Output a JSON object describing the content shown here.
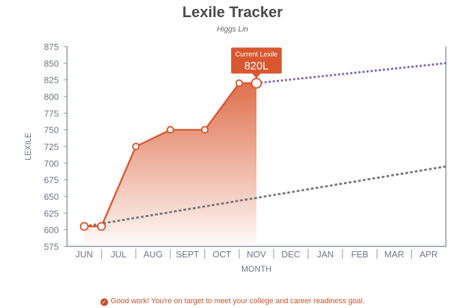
{
  "chart_data": {
    "type": "line",
    "title": "Lexile Tracker",
    "subtitle": "Higgs Lin",
    "xlabel": "MONTH",
    "ylabel": "LEXILE",
    "categories": [
      "JUN",
      "JUL",
      "AUG",
      "SEPT",
      "OCT",
      "NOV",
      "DEC",
      "JAN",
      "FEB",
      "MAR",
      "APR"
    ],
    "ylim": [
      575,
      875
    ],
    "yticks": [
      575,
      600,
      625,
      650,
      675,
      700,
      725,
      750,
      775,
      800,
      825,
      850,
      875
    ],
    "series": [
      {
        "points": [
          {
            "x": 0,
            "y": 605
          },
          {
            "x": 0.5,
            "y": 605
          },
          {
            "x": 1.5,
            "y": 725
          },
          {
            "x": 2.5,
            "y": 750
          },
          {
            "x": 3.5,
            "y": 750
          },
          {
            "x": 4.5,
            "y": 820
          },
          {
            "x": 5,
            "y": 820
          }
        ]
      },
      {
        "points": [
          {
            "x": 5,
            "y": 820
          },
          {
            "x": 10.5,
            "y": 850
          }
        ]
      },
      {
        "points": [
          {
            "x": 0,
            "y": 605
          },
          {
            "x": 10.5,
            "y": 695
          }
        ]
      }
    ],
    "annotation": {
      "label": "Current Lexile",
      "value": "820L",
      "x": 5,
      "y": 820
    },
    "colors": {
      "actual": "#d9572f",
      "projection": "#7b5fb5",
      "target": "#777777",
      "axis": "#8a93a3"
    }
  },
  "footer": {
    "message": "Good work! You're on target to meet your college and career readiness goal."
  }
}
